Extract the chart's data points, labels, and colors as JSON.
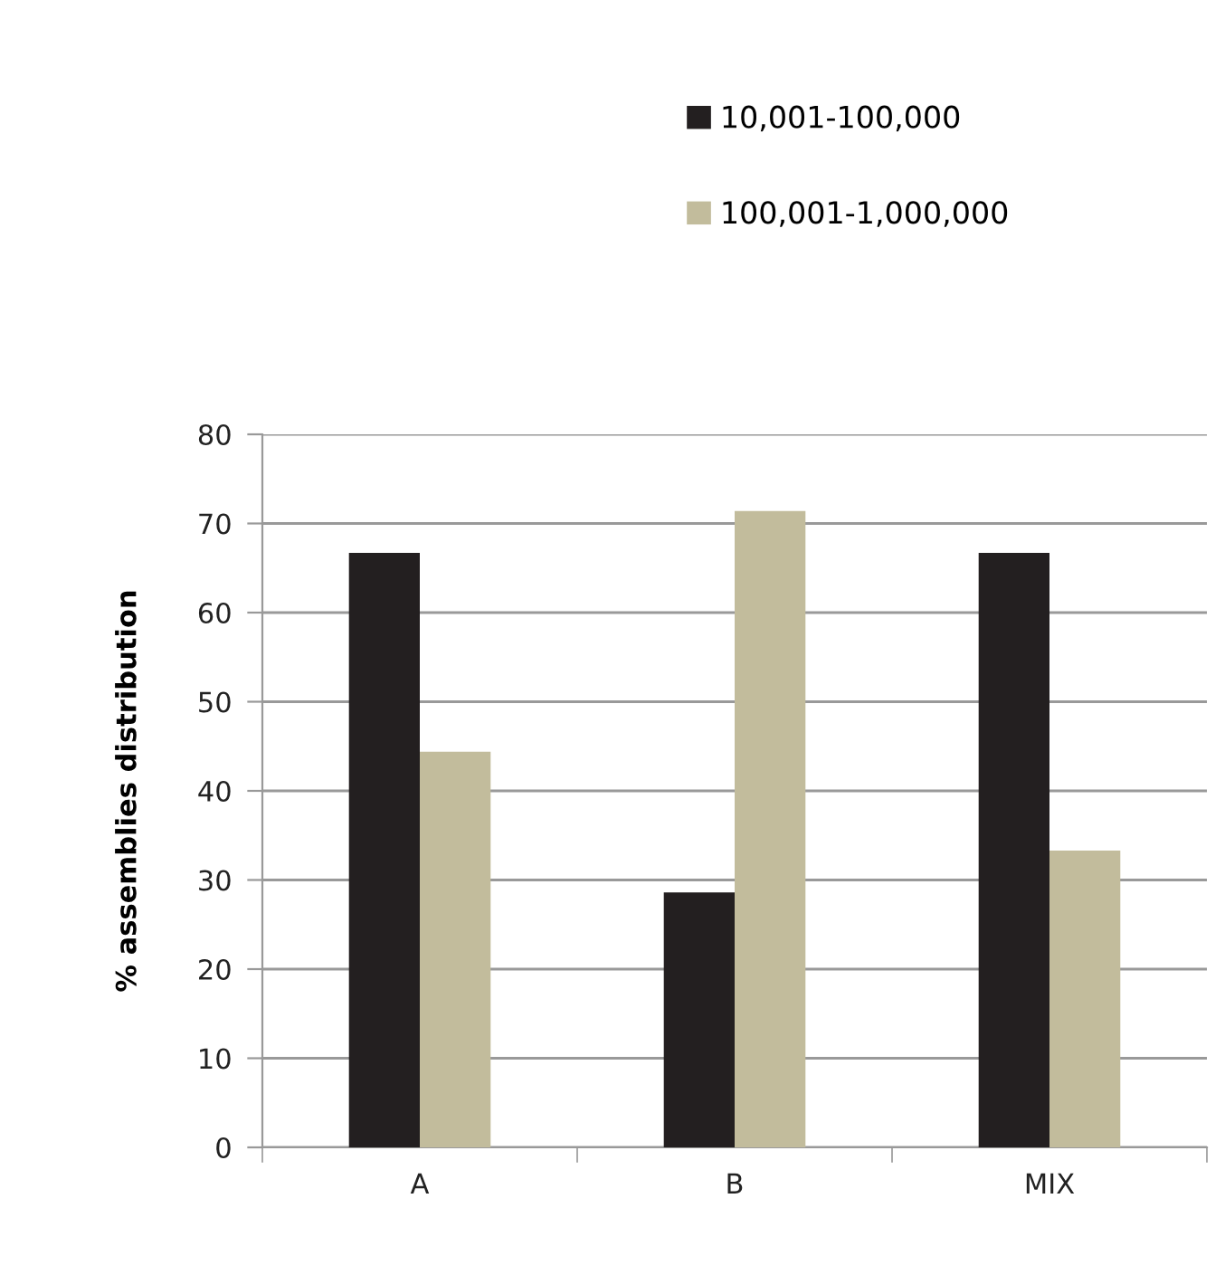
{
  "chart_data": {
    "type": "bar",
    "ylabel": "% assemblies distribution",
    "categories": [
      "A",
      "B",
      "MIX"
    ],
    "series": [
      {
        "name": "10,001-100,000",
        "color": "#231f20",
        "values": [
          66.7,
          28.6,
          66.7
        ]
      },
      {
        "name": "100,001-1,000,000",
        "color": "#c2bc9c",
        "values": [
          44.4,
          71.4,
          33.3
        ]
      }
    ],
    "ylim": [
      0,
      80
    ],
    "yticks": [
      0,
      10,
      20,
      30,
      40,
      50,
      60,
      70,
      80
    ],
    "grid": "y",
    "legend": "top"
  }
}
